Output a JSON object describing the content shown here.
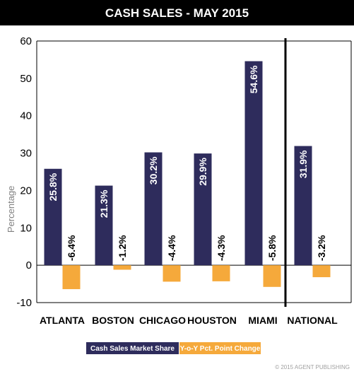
{
  "chart_data": {
    "type": "bar",
    "title": "CASH SALES - MAY 2015",
    "ylabel": "Percentage",
    "xlabel": "",
    "ylim": [
      -10,
      60
    ],
    "yticks": [
      "60",
      "50",
      "40",
      "30",
      "20",
      "10",
      "0",
      "-10"
    ],
    "categories": [
      "ATLANTA",
      "BOSTON",
      "CHICAGO",
      "HOUSTON",
      "MIAMI",
      "NATIONAL"
    ],
    "series": [
      {
        "name": "Cash Sales Market Share",
        "color": "#2e2c5c",
        "values": [
          25.8,
          21.3,
          30.2,
          29.9,
          54.6,
          31.9
        ],
        "labels": [
          "25.8%",
          "21.3%",
          "30.2%",
          "29.9%",
          "54.6%",
          "31.9%"
        ]
      },
      {
        "name": "Y-o-Y Pct. Point Change",
        "color": "#f5a93b",
        "values": [
          -6.4,
          -1.2,
          -4.4,
          -4.3,
          -5.8,
          -3.2
        ],
        "labels": [
          "-6.4%",
          "-1.2%",
          "-4.4%",
          "-4.3%",
          "-5.8%",
          "-3.2%"
        ]
      }
    ],
    "grid": false,
    "legend": "bottom-center",
    "separator_before": "NATIONAL",
    "copyright": "© 2015 AGENT PUBLISHING"
  }
}
